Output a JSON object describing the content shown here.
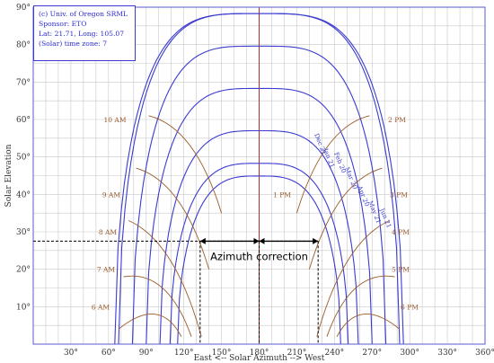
{
  "chart_data": {
    "type": "line",
    "source_box": {
      "line1": "(c) Univ. of Oregon SRML",
      "line2": "Sponsor: ETO",
      "line3": "Lat: 21.71, Long: 105.07",
      "line4": "(Solar) time zone: 7"
    },
    "xlabel": "East <-- Solar Azimuth --> West",
    "ylabel": "Solar Elevation",
    "xlim": [
      0,
      360
    ],
    "ylim": [
      0,
      90
    ],
    "x_ticks": [
      "30°",
      "60°",
      "90°",
      "120°",
      "150°",
      "180°",
      "210°",
      "240°",
      "270°",
      "300°",
      "330°",
      "360°"
    ],
    "y_ticks": [
      "10°",
      "20°",
      "30°",
      "40°",
      "50°",
      "60°",
      "70°",
      "80°",
      "90°"
    ],
    "grid": true,
    "colors": {
      "sun_path": "#3b3bd0",
      "hour_line": "#9b5a2a",
      "noon_line": "#b03030",
      "frame": "#5a5ad0",
      "annotation": "#000000"
    },
    "series_sun_paths": [
      {
        "name": "Jun 21",
        "peak_elevation": 88.3,
        "sunrise_azimuth": 65,
        "sunset_azimuth": 295
      },
      {
        "name": "May 21",
        "peak_elevation": 88.3,
        "sunrise_azimuth": 68,
        "sunset_azimuth": 292
      },
      {
        "name": "Apr 20",
        "peak_elevation": 79.6,
        "sunrise_azimuth": 79,
        "sunset_azimuth": 281
      },
      {
        "name": "Mar 20",
        "peak_elevation": 68.3,
        "sunrise_azimuth": 90,
        "sunset_azimuth": 270
      },
      {
        "name": "Feb 20",
        "peak_elevation": 57.0,
        "sunrise_azimuth": 101,
        "sunset_azimuth": 259
      },
      {
        "name": "Jan 21",
        "peak_elevation": 48.3,
        "sunrise_azimuth": 109,
        "sunset_azimuth": 251
      },
      {
        "name": "Dec 21",
        "peak_elevation": 44.9,
        "sunrise_azimuth": 115,
        "sunset_azimuth": 245
      }
    ],
    "hour_labels_am": [
      "6 AM",
      "7 AM",
      "8 AM",
      "9 AM",
      "10 AM"
    ],
    "hour_labels_pm": [
      "2 PM",
      "3 PM",
      "4 PM",
      "5 PM",
      "6 PM"
    ],
    "hour_label_1pm": "1 PM",
    "month_labels": [
      "Jun 21",
      "May 21",
      "Apr 20",
      "Mar 20",
      "Feb 20",
      "Jan 21",
      "Dec 21"
    ],
    "annotation": {
      "text": "Azimuth correction",
      "elevation": 27.5,
      "azimuth_left": 133,
      "azimuth_center": 180,
      "azimuth_right": 227
    }
  }
}
